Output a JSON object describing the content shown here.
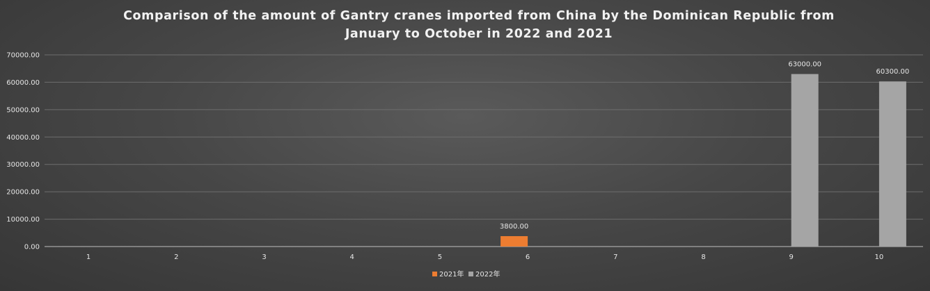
{
  "chart_data": {
    "type": "bar",
    "title": "Comparison of the amount of Gantry cranes imported from China by the Dominican Republic from January to October in 2022 and 2021",
    "categories": [
      "1",
      "2",
      "3",
      "4",
      "5",
      "6",
      "7",
      "8",
      "9",
      "10"
    ],
    "series": [
      {
        "name": "2021年",
        "color": "#ed7d31",
        "values": [
          0,
          0,
          0,
          0,
          0,
          3800,
          0,
          0,
          0,
          0
        ],
        "labels": [
          "",
          "",
          "",
          "",
          "",
          "3800.00",
          "",
          "",
          "",
          ""
        ]
      },
      {
        "name": "2022年",
        "color": "#a5a5a5",
        "values": [
          0,
          0,
          0,
          0,
          0,
          0,
          0,
          0,
          63000,
          60300
        ],
        "labels": [
          "",
          "",
          "",
          "",
          "",
          "",
          "",
          "",
          "63000.00",
          "60300.00"
        ]
      }
    ],
    "yticks": [
      "0.00",
      "10000.00",
      "20000.00",
      "30000.00",
      "40000.00",
      "50000.00",
      "60000.00",
      "70000.00"
    ],
    "ylim": [
      0,
      70000
    ],
    "grid": true,
    "legend_position": "bottom"
  }
}
